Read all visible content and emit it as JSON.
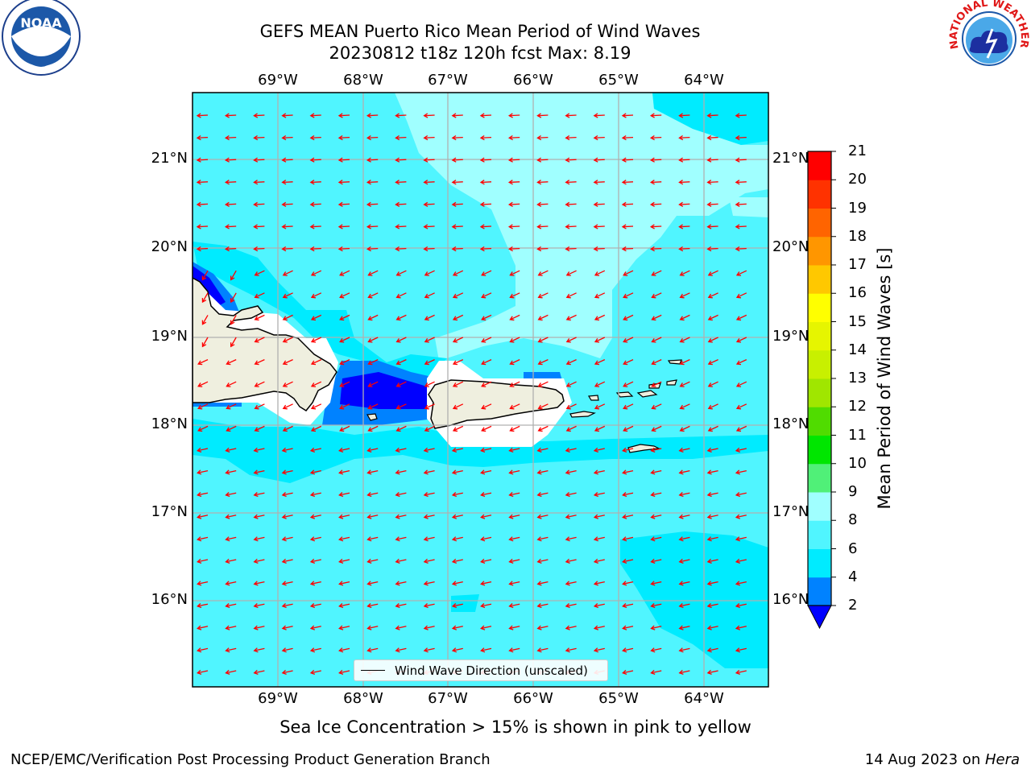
{
  "title_line1": "GEFS MEAN Puerto Rico Mean Period of Wind Waves",
  "title_line2": "20230812 t18z 120h fcst   Max: 8.19",
  "lon_labels": [
    "69°W",
    "68°W",
    "67°W",
    "66°W",
    "65°W",
    "64°W"
  ],
  "lat_labels": [
    "21°N",
    "20°N",
    "19°N",
    "18°N",
    "17°N",
    "16°N"
  ],
  "colorbar": {
    "title": "Mean Period of Wind Waves [s]",
    "labels": [
      "2",
      "4",
      "6",
      "8",
      "9",
      "10",
      "11",
      "12",
      "13",
      "14",
      "15",
      "16",
      "17",
      "18",
      "19",
      "20",
      "21"
    ],
    "colors": [
      "#0000ff",
      "#0082ff",
      "#00ebff",
      "#50f5ff",
      "#a0ffff",
      "#50f078",
      "#00e600",
      "#50dc00",
      "#a0e600",
      "#c8f000",
      "#e6f500",
      "#ffff00",
      "#ffc800",
      "#ff9600",
      "#ff6400",
      "#ff3200",
      "#ff0000"
    ]
  },
  "legend_label": "Wind Wave Direction (unscaled)",
  "sub_note": "Sea Ice Concentration > 15% is shown in pink to yellow",
  "footer_left": "NCEP/EMC/Verification Post Processing Product Generation Branch",
  "footer_date": "14 Aug 2023 on ",
  "footer_machine": "Hera",
  "logos": {
    "left": "NOAA",
    "right": "NATIONAL WEATHER SERVICE"
  },
  "colors": {
    "ocean_main": "#50f5ff",
    "ocean_light": "#a0ffff",
    "ocean_cyan": "#00ebff",
    "land": "#efefdf",
    "arrow": "#ff0000"
  }
}
